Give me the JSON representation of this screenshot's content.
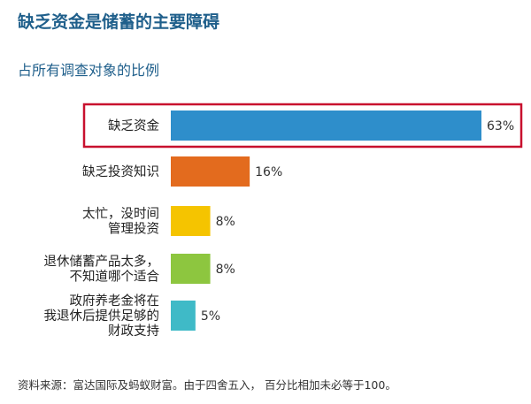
{
  "header": {
    "title": "缺乏资金是储蓄的主要障碍",
    "subtitle": "占所有调查对象的比例"
  },
  "chart_data": {
    "type": "bar",
    "orientation": "horizontal",
    "title": "缺乏资金是储蓄的主要障碍",
    "subtitle": "占所有调查对象的比例",
    "unit": "%",
    "categories": [
      [
        "缺乏资金"
      ],
      [
        "缺乏投资知识"
      ],
      [
        "太忙，没时间",
        "管理投资"
      ],
      [
        "退休储蓄产品太多，",
        "不知道哪个适合"
      ],
      [
        "政府养老金将在",
        "我退休后提供足够的",
        "财政支持"
      ]
    ],
    "values": [
      63,
      16,
      8,
      8,
      5
    ],
    "value_labels": [
      "63%",
      "16%",
      "8%",
      "8%",
      "5%"
    ],
    "colors": [
      "#2e8ecb",
      "#e36b1e",
      "#f5c400",
      "#8dc63f",
      "#3fbac7"
    ],
    "highlight_index": 0,
    "highlight_color": "#c8102e",
    "xlim": [
      0,
      63
    ],
    "grid": false,
    "legend": "none"
  },
  "footer": {
    "source": "资料来源：富达国际及蚂蚁财富。由于四舍五入， 百分比相加未必等于100。"
  }
}
